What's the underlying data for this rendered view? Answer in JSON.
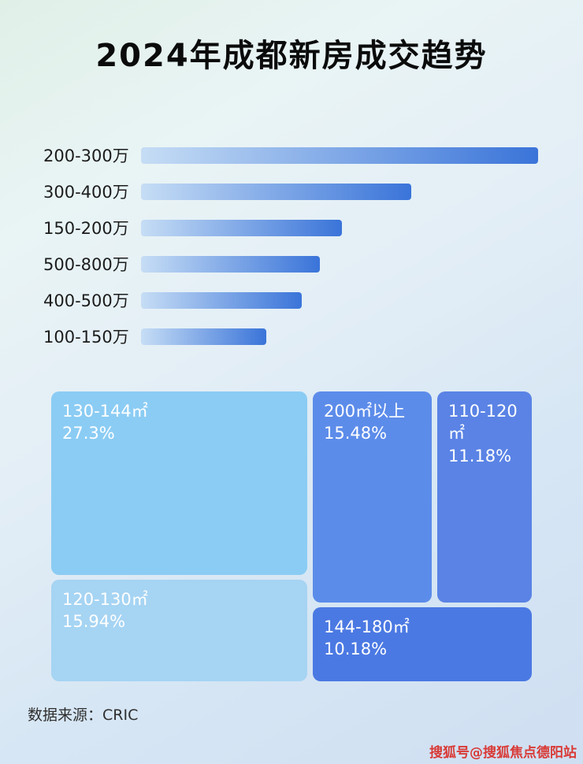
{
  "page": {
    "title": "2024年成都新房成交趋势",
    "source_label": "数据来源：CRIC",
    "watermark": "搜狐号@搜狐焦点德阳站"
  },
  "colors": {
    "title_text": "#0b0b0b",
    "bar_label_text": "#1c1c1c",
    "bar_gradient_start": "#c6ddf5",
    "bar_gradient_end": "#3a74d9",
    "treemap_text": "#ffffff",
    "source_text": "#2f2f2f",
    "watermark_text": "#d93a36"
  },
  "chart_data": [
    {
      "type": "bar",
      "orientation": "horizontal",
      "title": "2024年成都新房成交趋势",
      "categories": [
        "200-300万",
        "300-400万",
        "150-200万",
        "500-800万",
        "400-500万",
        "100-150万"
      ],
      "values": [
        100,
        68,
        50.5,
        45,
        40.5,
        31.5
      ],
      "value_basis": "relative bar length, longest bar = 100; no axis ticks or data labels are shown in the image",
      "xlim": [
        0,
        100
      ],
      "grid": false,
      "bar_gradient": [
        "#c6ddf5",
        "#3a74d9"
      ]
    },
    {
      "type": "treemap",
      "items": [
        {
          "label": "130-144㎡",
          "value": 27.3,
          "value_label": "27.3%",
          "color": "#8bccf4"
        },
        {
          "label": "200㎡以上",
          "value": 15.48,
          "value_label": "15.48%",
          "color": "#5c8cea"
        },
        {
          "label": "110-120㎡",
          "value": 11.18,
          "value_label": "11.18%",
          "color": "#5a83e5"
        },
        {
          "label": "120-130㎡",
          "value": 15.94,
          "value_label": "15.94%",
          "color": "#a6d4f3"
        },
        {
          "label": "144-180㎡",
          "value": 10.18,
          "value_label": "10.18%",
          "color": "#4b79e3"
        }
      ]
    }
  ]
}
